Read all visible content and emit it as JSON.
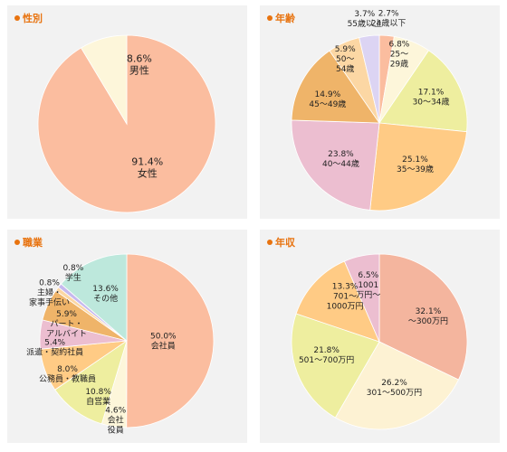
{
  "chart_data": [
    {
      "type": "pie",
      "title": "性別",
      "slices": [
        {
          "label": "女性",
          "value": 91.4,
          "display": "91.4%",
          "color": "#fbbd9f"
        },
        {
          "label": "男性",
          "value": 8.6,
          "display": "8.6%",
          "color": "#fdf6da"
        }
      ]
    },
    {
      "type": "pie",
      "title": "年齢",
      "slices": [
        {
          "label": "24歳以下",
          "value": 2.7,
          "display": "2.7%",
          "color": "#fbbd9f"
        },
        {
          "label": "25～29歳",
          "value": 6.8,
          "display": "6.8%",
          "color": "#fdf6da"
        },
        {
          "label": "30～34歳",
          "value": 17.1,
          "display": "17.1%",
          "color": "#eeee9f"
        },
        {
          "label": "35～39歳",
          "value": 25.1,
          "display": "25.1%",
          "color": "#ffcb85"
        },
        {
          "label": "40～44歳",
          "value": 23.8,
          "display": "23.8%",
          "color": "#ecbed0"
        },
        {
          "label": "45～49歳",
          "value": 14.9,
          "display": "14.9%",
          "color": "#efb469"
        },
        {
          "label": "50～54歳",
          "value": 5.9,
          "display": "5.9%",
          "color": "#fcd7a4"
        },
        {
          "label": "55歳以上",
          "value": 3.7,
          "display": "3.7%",
          "color": "#dcd4f3"
        }
      ]
    },
    {
      "type": "pie",
      "title": "職業",
      "slices": [
        {
          "label": "会社員",
          "value": 50.0,
          "display": "50.0%",
          "color": "#fbbd9f"
        },
        {
          "label": "会社役員",
          "value": 4.6,
          "display": "4.6%",
          "color": "#fdf6da"
        },
        {
          "label": "自営業",
          "value": 10.8,
          "display": "10.8%",
          "color": "#eeee9f"
        },
        {
          "label": "公務員・教職員",
          "value": 8.0,
          "display": "8.0%",
          "color": "#ffcb85"
        },
        {
          "label": "派遣・契約社員",
          "value": 5.4,
          "display": "5.4%",
          "color": "#ecbed0"
        },
        {
          "label": "パート・アルバイト",
          "value": 5.9,
          "display": "5.9%",
          "color": "#efb469"
        },
        {
          "label": "主婦・家事手伝い",
          "value": 0.8,
          "display": "0.8%",
          "color": "#fcd7a4"
        },
        {
          "label": "学生",
          "value": 0.8,
          "display": "0.8%",
          "color": "#c6b9ee"
        },
        {
          "label": "その他",
          "value": 13.6,
          "display": "13.6%",
          "color": "#bde8dc"
        }
      ]
    },
    {
      "type": "pie",
      "title": "年収",
      "slices": [
        {
          "label": "～300万円",
          "value": 32.1,
          "display": "32.1%",
          "color": "#f4b59e"
        },
        {
          "label": "301～500万円",
          "value": 26.2,
          "display": "26.2%",
          "color": "#fdf2d3"
        },
        {
          "label": "501～700万円",
          "value": 21.8,
          "display": "21.8%",
          "color": "#eeee9f"
        },
        {
          "label": "701～1000万円",
          "value": 13.3,
          "display": "13.3%",
          "color": "#ffcb85"
        },
        {
          "label": "1001万円～",
          "value": 6.5,
          "display": "6.5%",
          "color": "#ecbed0"
        }
      ]
    }
  ]
}
